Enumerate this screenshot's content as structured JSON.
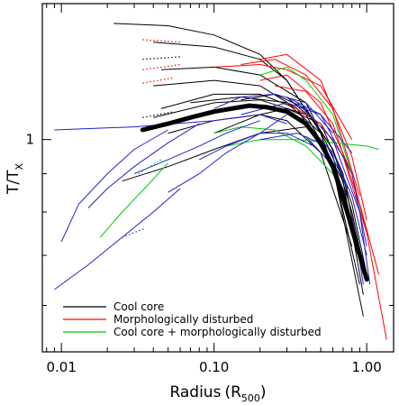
{
  "chart_data": {
    "type": "line",
    "xlabel": "Radius",
    "xlabel_sub": "500",
    "ylabel": "T/T",
    "ylabel_sub": "X",
    "xscale": "log",
    "yscale": "log",
    "xlim": [
      0.0075,
      1.5
    ],
    "ylim": [
      0.52,
      1.52
    ],
    "grid": false,
    "legend_position": "bottom-left",
    "xticks": [
      {
        "value": 0.01,
        "label": "0.01"
      },
      {
        "value": 0.1,
        "label": "0.10"
      },
      {
        "value": 1.0,
        "label": "1.00"
      }
    ],
    "yticks": [
      {
        "value": 1.0,
        "label": "1"
      }
    ],
    "legend": [
      {
        "label": "Cool core",
        "color": "#000000"
      },
      {
        "label": "Morphologically disturbed",
        "color": "#ff0000"
      },
      {
        "label": "Cool core + morphologically disturbed",
        "color": "#00cc00"
      }
    ],
    "colors": {
      "cool_core": "#000000",
      "disturbed": "#ff0000",
      "both": "#00cc00",
      "other": "#2222cc",
      "mean": "#000000"
    },
    "mean_profile": {
      "x": [
        0.034,
        0.05,
        0.07,
        0.1,
        0.13,
        0.17,
        0.22,
        0.3,
        0.4,
        0.5,
        0.6,
        0.7,
        0.8,
        0.9,
        1.0
      ],
      "y": [
        1.03,
        1.05,
        1.07,
        1.09,
        1.1,
        1.11,
        1.105,
        1.09,
        1.05,
        0.99,
        0.92,
        0.84,
        0.76,
        0.7,
        0.65
      ]
    },
    "series": [
      {
        "group": "cool_core",
        "x": [
          0.022,
          0.05,
          0.1,
          0.2,
          0.3,
          0.5
        ],
        "y": [
          1.43,
          1.42,
          1.38,
          1.3,
          1.2,
          1.02
        ]
      },
      {
        "group": "cool_core",
        "x": [
          0.04,
          0.1,
          0.2,
          0.3,
          0.5,
          0.8
        ],
        "y": [
          1.35,
          1.33,
          1.28,
          1.2,
          1.02,
          0.78
        ]
      },
      {
        "group": "cool_core",
        "x": [
          0.045,
          0.1,
          0.2,
          0.4,
          0.6,
          0.95
        ],
        "y": [
          1.24,
          1.25,
          1.22,
          1.12,
          0.95,
          0.66
        ]
      },
      {
        "group": "cool_core",
        "x": [
          0.04,
          0.1,
          0.2,
          0.35,
          0.6,
          0.95
        ],
        "y": [
          1.18,
          1.2,
          1.18,
          1.1,
          0.92,
          0.58
        ]
      },
      {
        "group": "cool_core",
        "x": [
          0.045,
          0.1,
          0.2,
          0.35,
          0.6,
          0.9
        ],
        "y": [
          1.1,
          1.15,
          1.15,
          1.1,
          0.92,
          0.64
        ]
      },
      {
        "group": "cool_core",
        "x": [
          0.04,
          0.1,
          0.2,
          0.4,
          0.7,
          0.95
        ],
        "y": [
          1.07,
          1.12,
          1.13,
          1.08,
          0.88,
          0.62
        ]
      },
      {
        "group": "cool_core",
        "x": [
          0.05,
          0.1,
          0.2,
          0.3,
          0.5,
          0.8
        ],
        "y": [
          1.02,
          1.06,
          1.08,
          1.06,
          0.96,
          0.72
        ]
      },
      {
        "group": "cool_core",
        "x": [
          0.1,
          0.2,
          0.3,
          0.5,
          0.7,
          0.9
        ],
        "y": [
          1.02,
          1.08,
          1.1,
          1.05,
          0.9,
          0.7
        ]
      },
      {
        "group": "cool_core",
        "x": [
          0.07,
          0.15,
          0.3,
          0.5,
          0.8
        ],
        "y": [
          1.12,
          1.14,
          1.12,
          1.02,
          0.75
        ]
      },
      {
        "group": "cool_core",
        "x": [
          0.025,
          0.05,
          0.1,
          0.2,
          0.4
        ],
        "y": [
          0.88,
          0.92,
          0.97,
          1.02,
          1.04
        ]
      },
      {
        "group": "cool_core",
        "x": [
          0.15,
          0.25,
          0.4,
          0.6,
          0.8,
          0.95
        ],
        "y": [
          1.13,
          1.15,
          1.1,
          0.97,
          0.8,
          0.68
        ]
      },
      {
        "group": "cool_core",
        "x": [
          0.3,
          0.45,
          0.6,
          0.8,
          1.0
        ],
        "y": [
          1.14,
          1.06,
          0.97,
          0.82,
          0.66
        ]
      },
      {
        "group": "disturbed",
        "x": [
          0.2,
          0.3,
          0.5,
          0.8,
          1.0
        ],
        "y": [
          1.28,
          1.3,
          1.2,
          0.95,
          0.78
        ]
      },
      {
        "group": "disturbed",
        "x": [
          0.15,
          0.25,
          0.4,
          0.6,
          0.9
        ],
        "y": [
          1.26,
          1.28,
          1.22,
          1.1,
          0.84
        ]
      },
      {
        "group": "disturbed",
        "x": [
          0.2,
          0.3,
          0.5,
          0.8,
          1.0
        ],
        "y": [
          1.2,
          1.22,
          1.12,
          0.9,
          0.75
        ]
      },
      {
        "group": "disturbed",
        "x": [
          0.25,
          0.4,
          0.6,
          0.9,
          1.2
        ],
        "y": [
          1.18,
          1.16,
          1.05,
          0.82,
          0.66
        ]
      },
      {
        "group": "disturbed",
        "x": [
          0.1,
          0.2,
          0.3,
          0.5,
          0.8
        ],
        "y": [
          1.25,
          1.26,
          1.24,
          1.18,
          1.0
        ]
      },
      {
        "group": "disturbed",
        "x": [
          0.3,
          0.5,
          0.7,
          1.0,
          1.35
        ],
        "y": [
          1.12,
          1.05,
          0.95,
          0.75,
          0.54
        ]
      },
      {
        "group": "both",
        "x": [
          0.2,
          0.3,
          0.4,
          0.6,
          0.8
        ],
        "y": [
          1.22,
          1.25,
          1.2,
          1.08,
          0.9
        ]
      },
      {
        "group": "both",
        "x": [
          0.1,
          0.15,
          0.25,
          0.4,
          0.6,
          0.8
        ],
        "y": [
          1.02,
          1.04,
          1.03,
          0.98,
          0.9,
          0.78
        ]
      },
      {
        "group": "both",
        "x": [
          0.12,
          0.2,
          0.35,
          0.6,
          1.0,
          1.2
        ],
        "y": [
          0.98,
          1.0,
          1.0,
          0.99,
          0.98,
          0.97
        ]
      },
      {
        "group": "both",
        "x": [
          0.018,
          0.025,
          0.035,
          0.05
        ],
        "y": [
          0.74,
          0.8,
          0.86,
          0.93
        ]
      },
      {
        "group": "other",
        "x": [
          0.009,
          0.03,
          0.1,
          0.2,
          0.3
        ],
        "y": [
          1.03,
          1.04,
          1.06,
          1.08,
          1.05
        ]
      },
      {
        "group": "other",
        "x": [
          0.009,
          0.015,
          0.025,
          0.04,
          0.06
        ],
        "y": [
          0.63,
          0.68,
          0.74,
          0.8,
          0.86
        ]
      },
      {
        "group": "other",
        "x": [
          0.01,
          0.013,
          0.02,
          0.03,
          0.05
        ],
        "y": [
          0.73,
          0.82,
          0.9,
          0.97,
          1.03
        ]
      },
      {
        "group": "other",
        "x": [
          0.015,
          0.02,
          0.03,
          0.05,
          0.08
        ],
        "y": [
          0.81,
          0.86,
          0.92,
          0.99,
          1.05
        ]
      },
      {
        "group": "other",
        "x": [
          0.03,
          0.05,
          0.08,
          0.12,
          0.2
        ],
        "y": [
          0.9,
          0.94,
          0.98,
          1.02,
          1.06
        ]
      },
      {
        "group": "other",
        "x": [
          0.05,
          0.08,
          0.12,
          0.2,
          0.3
        ],
        "y": [
          0.85,
          0.9,
          0.96,
          1.02,
          1.08
        ]
      },
      {
        "group": "other",
        "x": [
          0.3,
          0.5,
          0.8,
          1.0
        ],
        "y": [
          1.14,
          1.08,
          0.9,
          0.72
        ]
      },
      {
        "group": "other",
        "x": [
          0.35,
          0.6,
          0.9,
          1.05
        ],
        "y": [
          1.12,
          1.0,
          0.8,
          0.64
        ]
      },
      {
        "group": "other",
        "x": [
          0.4,
          0.6,
          0.8,
          1.0
        ],
        "y": [
          1.05,
          0.96,
          0.84,
          0.7
        ]
      },
      {
        "group": "other",
        "x": [
          0.15,
          0.3,
          0.5,
          0.8
        ],
        "y": [
          1.08,
          1.12,
          1.08,
          0.96
        ]
      },
      {
        "group": "other",
        "x": [
          0.2,
          0.35,
          0.55,
          0.75
        ],
        "y": [
          1.0,
          1.02,
          0.98,
          0.86
        ]
      },
      {
        "group": "other",
        "x": [
          0.08,
          0.12,
          0.2,
          0.3,
          0.45
        ],
        "y": [
          0.94,
          0.98,
          1.02,
          1.02,
          0.98
        ]
      },
      {
        "group": "other",
        "x": [
          0.1,
          0.15,
          0.25,
          0.4,
          0.6
        ],
        "y": [
          1.1,
          1.14,
          1.15,
          1.12,
          1.02
        ]
      },
      {
        "group": "other",
        "x": [
          0.4,
          0.55,
          0.7,
          0.85,
          0.95
        ],
        "y": [
          1.01,
          0.94,
          0.86,
          0.74,
          0.64
        ]
      },
      {
        "group": "other",
        "x": [
          0.5,
          0.65,
          0.8,
          0.95
        ],
        "y": [
          0.98,
          0.88,
          0.78,
          0.68
        ]
      }
    ],
    "extrapolated_segments": [
      {
        "group": "disturbed",
        "x": [
          0.034,
          0.06
        ],
        "y": [
          1.36,
          1.35
        ]
      },
      {
        "group": "disturbed",
        "x": [
          0.034,
          0.06
        ],
        "y": [
          1.24,
          1.26
        ]
      },
      {
        "group": "disturbed",
        "x": [
          0.034,
          0.055
        ],
        "y": [
          1.19,
          1.21
        ]
      },
      {
        "group": "cool_core",
        "x": [
          0.034,
          0.06
        ],
        "y": [
          1.28,
          1.29
        ]
      },
      {
        "group": "cool_core",
        "x": [
          0.034,
          0.055
        ],
        "y": [
          1.07,
          1.09
        ]
      },
      {
        "group": "both",
        "x": [
          0.032,
          0.045
        ],
        "y": [
          0.9,
          0.94
        ]
      },
      {
        "group": "other",
        "x": [
          0.025,
          0.035
        ],
        "y": [
          0.74,
          0.76
        ]
      }
    ]
  }
}
